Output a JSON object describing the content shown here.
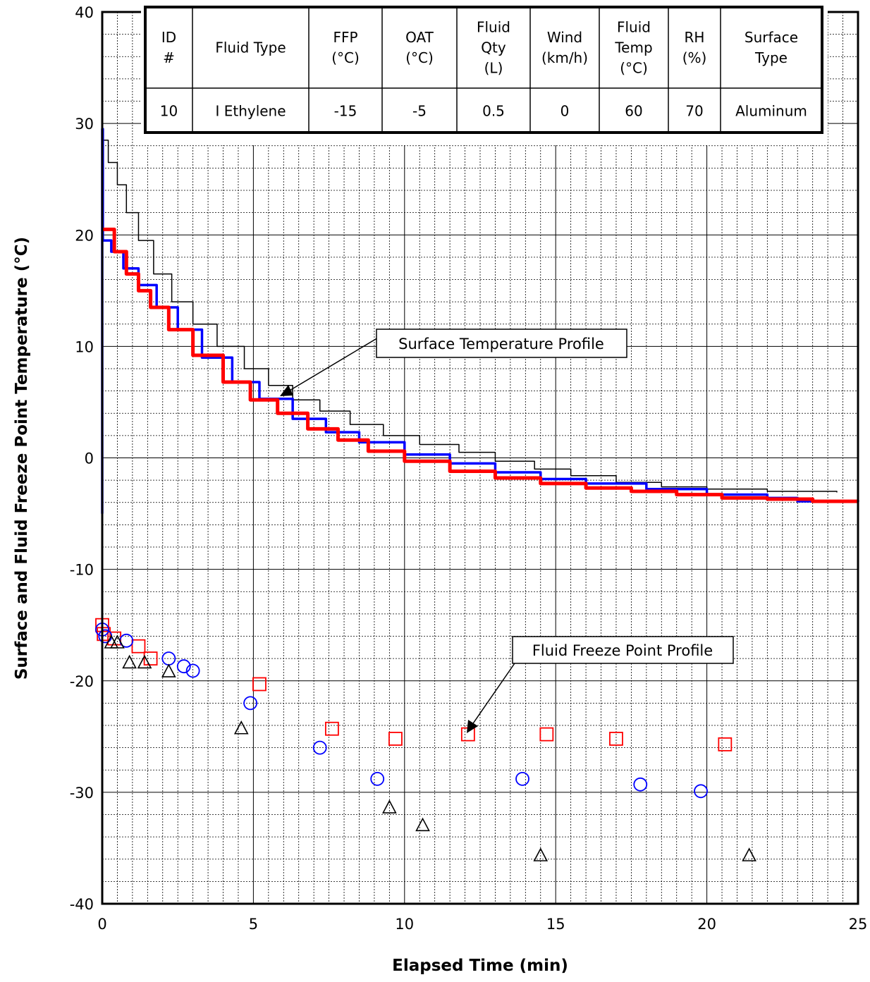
{
  "chart_data": {
    "type": "line",
    "xlabel": "Elapsed Time (min)",
    "ylabel": "Surface and Fluid Freeze Point Temperature (°C)",
    "xlim": [
      0,
      25
    ],
    "ylim": [
      -40,
      40
    ],
    "x_ticks": [
      "0",
      "5",
      "10",
      "15",
      "20",
      "25"
    ],
    "y_ticks": [
      "40",
      "30",
      "20",
      "10",
      "0",
      "-10",
      "-20",
      "-30",
      "-40"
    ],
    "grid": "major solid, minor dashed",
    "table": {
      "headers": [
        [
          "ID",
          "#"
        ],
        [
          "Fluid Type"
        ],
        [
          "FFP",
          "(°C)"
        ],
        [
          "OAT",
          "(°C)"
        ],
        [
          "Fluid",
          "Qty",
          "(L)"
        ],
        [
          "Wind",
          "(km/h)"
        ],
        [
          "Fluid",
          "Temp",
          "(°C)"
        ],
        [
          "RH",
          "(%)"
        ],
        [
          "Surface",
          "Type"
        ]
      ],
      "row": [
        "10",
        "I Ethylene",
        "-15",
        "-5",
        "0.5",
        "0",
        "60",
        "70",
        "Aluminum"
      ]
    },
    "annotations": [
      {
        "text": "Surface Temperature Profile"
      },
      {
        "text": "Fluid Freeze Point Profile"
      }
    ],
    "series": [
      {
        "color": "#000000",
        "style": "thin-line",
        "points": [
          [
            0,
            -5
          ],
          [
            0,
            28.5
          ],
          [
            0.2,
            26.5
          ],
          [
            0.5,
            24.5
          ],
          [
            0.8,
            22
          ],
          [
            1.2,
            19.5
          ],
          [
            1.7,
            16.5
          ],
          [
            2.3,
            14
          ],
          [
            3,
            12
          ],
          [
            3.8,
            10
          ],
          [
            4.7,
            8
          ],
          [
            5.5,
            6.5
          ],
          [
            6.3,
            5.2
          ],
          [
            7.2,
            4.2
          ],
          [
            8.2,
            3
          ],
          [
            9.3,
            2
          ],
          [
            10.5,
            1.2
          ],
          [
            11.8,
            0.5
          ],
          [
            13,
            -0.3
          ],
          [
            14.3,
            -1
          ],
          [
            15.5,
            -1.6
          ],
          [
            17,
            -2.2
          ],
          [
            18.5,
            -2.6
          ],
          [
            20,
            -2.8
          ],
          [
            22,
            -3
          ],
          [
            24.3,
            -3.1
          ]
        ]
      },
      {
        "color": "#0000ff",
        "style": "thick-line",
        "points": [
          [
            0,
            -5
          ],
          [
            0,
            29.5
          ],
          [
            0.02,
            19.5
          ],
          [
            0.3,
            18.5
          ],
          [
            0.7,
            17
          ],
          [
            1.2,
            15.5
          ],
          [
            1.8,
            13.5
          ],
          [
            2.5,
            11.5
          ],
          [
            3.3,
            9
          ],
          [
            4.3,
            6.8
          ],
          [
            5.2,
            5.3
          ],
          [
            6.3,
            3.5
          ],
          [
            7.4,
            2.3
          ],
          [
            8.5,
            1.4
          ],
          [
            10,
            0.3
          ],
          [
            11.5,
            -0.5
          ],
          [
            13,
            -1.3
          ],
          [
            14.5,
            -1.9
          ],
          [
            16,
            -2.3
          ],
          [
            18,
            -2.8
          ],
          [
            20,
            -3.3
          ],
          [
            22,
            -3.6
          ],
          [
            23,
            -3.9
          ],
          [
            25,
            -3.8
          ]
        ]
      },
      {
        "color": "#ff0000",
        "style": "thick-line",
        "points": [
          [
            0,
            20.5
          ],
          [
            0.4,
            18.5
          ],
          [
            0.8,
            16.5
          ],
          [
            1.2,
            15
          ],
          [
            1.6,
            13.5
          ],
          [
            2.2,
            11.5
          ],
          [
            3,
            9.2
          ],
          [
            4,
            6.8
          ],
          [
            4.9,
            5.2
          ],
          [
            5.8,
            4
          ],
          [
            6.8,
            2.6
          ],
          [
            7.8,
            1.6
          ],
          [
            8.8,
            0.6
          ],
          [
            10,
            -0.3
          ],
          [
            11.5,
            -1.2
          ],
          [
            13,
            -1.8
          ],
          [
            14.5,
            -2.3
          ],
          [
            16,
            -2.7
          ],
          [
            17.5,
            -3
          ],
          [
            19,
            -3.3
          ],
          [
            20.5,
            -3.6
          ],
          [
            22,
            -3.7
          ],
          [
            23.5,
            -3.9
          ],
          [
            25,
            -3.9
          ]
        ]
      },
      {
        "color": "#ff0000",
        "marker": "square",
        "points": [
          [
            0,
            -15
          ],
          [
            0.05,
            -15.8
          ],
          [
            0.4,
            -16.2
          ],
          [
            1.2,
            -16.9
          ],
          [
            1.6,
            -18
          ],
          [
            5.2,
            -20.3
          ],
          [
            7.6,
            -24.3
          ],
          [
            9.7,
            -25.2
          ],
          [
            12.1,
            -24.8
          ],
          [
            14.7,
            -24.8
          ],
          [
            17,
            -25.2
          ],
          [
            20.6,
            -25.7
          ]
        ]
      },
      {
        "color": "#0000ff",
        "marker": "circle",
        "points": [
          [
            0,
            -15.4
          ],
          [
            0.1,
            -16
          ],
          [
            0.8,
            -16.4
          ],
          [
            2.2,
            -18
          ],
          [
            2.7,
            -18.7
          ],
          [
            3,
            -19.1
          ],
          [
            4.9,
            -22
          ],
          [
            7.2,
            -26
          ],
          [
            9.1,
            -28.8
          ],
          [
            13.9,
            -28.8
          ],
          [
            17.8,
            -29.3
          ],
          [
            19.8,
            -29.9
          ]
        ]
      },
      {
        "color": "#000000",
        "marker": "triangle",
        "points": [
          [
            0.3,
            -16.6
          ],
          [
            0.5,
            -16.6
          ],
          [
            0.9,
            -18.4
          ],
          [
            1.4,
            -18.4
          ],
          [
            2.2,
            -19.2
          ],
          [
            4.6,
            -24.3
          ],
          [
            9.5,
            -31.4
          ],
          [
            10.6,
            -33
          ],
          [
            14.5,
            -35.7
          ],
          [
            21.4,
            -35.7
          ]
        ]
      }
    ]
  }
}
